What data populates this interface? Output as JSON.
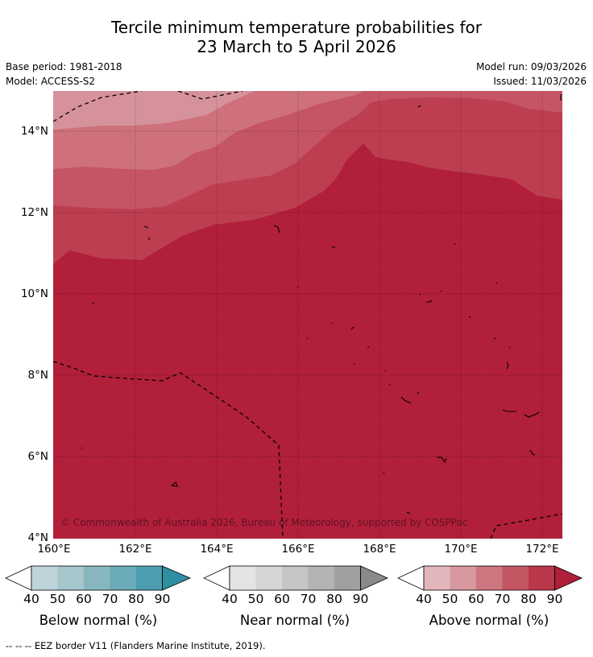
{
  "title_line1": "Tercile minimum temperature probabilities for",
  "title_line2": "23 March to 5 April 2026",
  "meta": {
    "base_period": "Base period: 1981-2018",
    "model": "Model: ACCESS-S2",
    "model_run": "Model run: 09/03/2026",
    "issued": "Issued: 11/03/2026"
  },
  "axes": {
    "lat_labels": [
      "14°N",
      "12°N",
      "10°N",
      "8°N",
      "6°N",
      "4°N"
    ],
    "lon_labels": [
      "160°E",
      "162°E",
      "164°E",
      "166°E",
      "168°E",
      "170°E",
      "172°E"
    ]
  },
  "copyright": "© Commonwealth of Australia 2026, Bureau of Meteorology, supported by COSPPac",
  "colorbars": [
    {
      "name": "Below normal (%)",
      "ticks": [
        "40",
        "50",
        "60",
        "70",
        "80",
        "90"
      ],
      "colors": [
        "#bfd4da",
        "#a5c6cb",
        "#88b6bf",
        "#6babba",
        "#4d9db0",
        "#2e8fa2"
      ]
    },
    {
      "name": "Near normal (%)",
      "ticks": [
        "40",
        "50",
        "60",
        "70",
        "80",
        "90"
      ],
      "colors": [
        "#e4e4e4",
        "#d6d6d6",
        "#c5c5c5",
        "#b3b3b3",
        "#a0a0a0",
        "#8a8a8a"
      ]
    },
    {
      "name": "Above normal (%)",
      "ticks": [
        "40",
        "50",
        "60",
        "70",
        "80",
        "90"
      ],
      "colors": [
        "#e2b6bb",
        "#d6979f",
        "#cd7680",
        "#c45664",
        "#b9374a",
        "#b11f3b"
      ]
    }
  ],
  "footer": "--  --  -- EEZ border V11 (Flanders Marine Institute, 2019).",
  "colors": {
    "band_40": "#e2c3c6",
    "band_50": "#d6929a",
    "band_60": "#ce717c",
    "band_70": "#c55466",
    "band_80": "#bd3e51",
    "band_90": "#b11f3b"
  }
}
